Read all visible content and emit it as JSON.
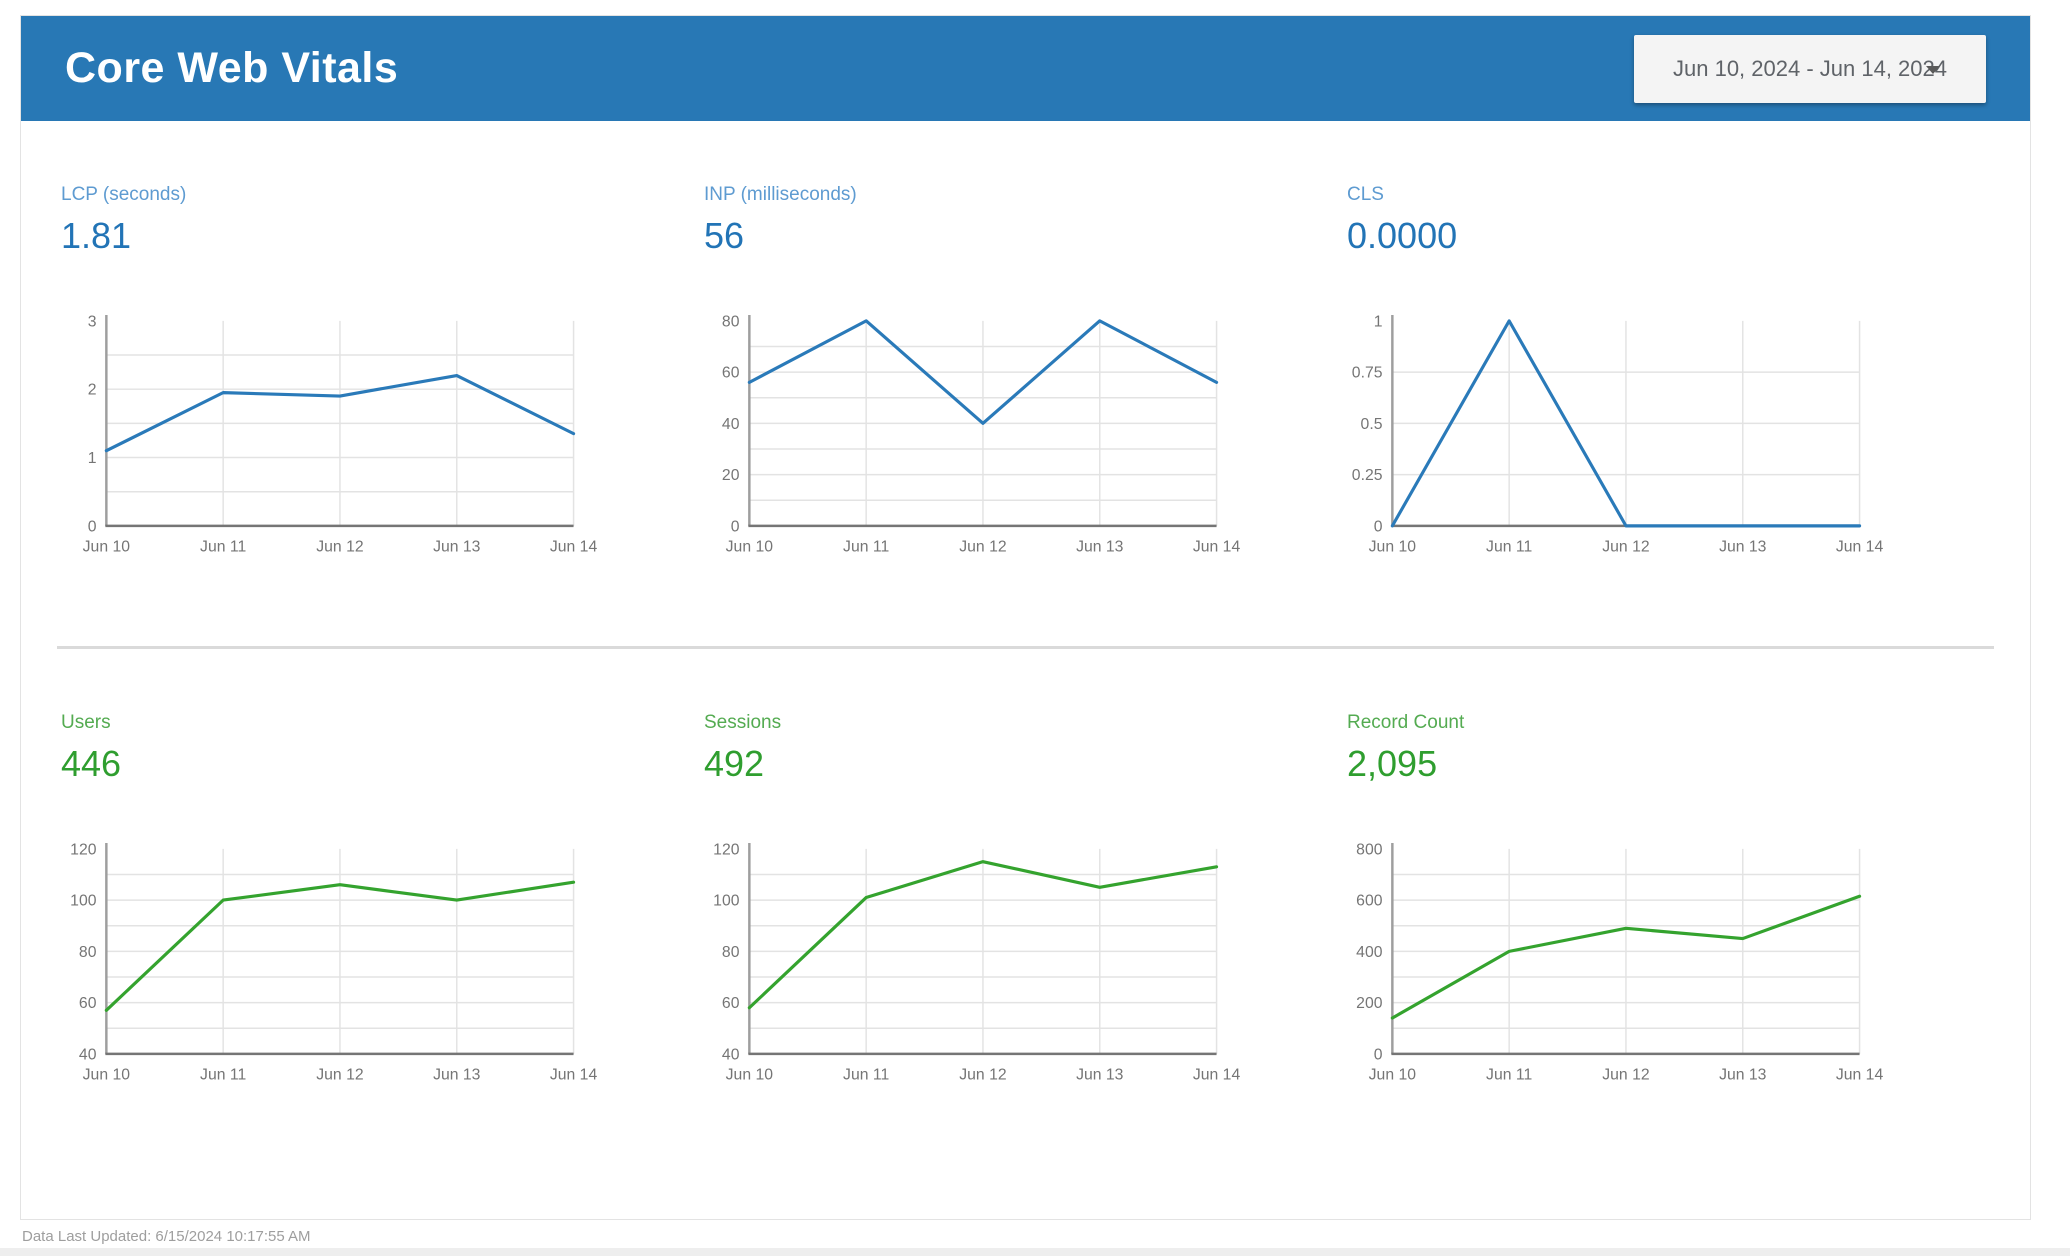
{
  "header": {
    "title": "Core Web Vitals",
    "date_range": "Jun 10, 2024 - Jun 14, 2024"
  },
  "footer": {
    "last_updated": "Data Last Updated: 6/15/2024 10:17:55 AM"
  },
  "colors": {
    "header_blue": "#2878b5",
    "grid": "#e3e3e3",
    "axis": "#9e9e9e",
    "baseline": "#757575",
    "tick_text": "#757575",
    "date_box_bg": "#f4f4f4",
    "date_box_text": "#5f6368"
  },
  "chart_data": [
    {
      "type": "line",
      "title": "LCP (seconds)",
      "scorecard_value": "1.81",
      "x": [
        "Jun 10",
        "Jun 11",
        "Jun 12",
        "Jun 13",
        "Jun 14"
      ],
      "values": [
        1.1,
        1.95,
        1.9,
        2.2,
        1.35
      ],
      "ylim": [
        0,
        3
      ],
      "ytick_values": [
        0,
        1,
        2,
        3
      ],
      "ytick_labels": [
        "0",
        "1",
        "2",
        "3"
      ],
      "grid_step": 0.5,
      "legend": "none",
      "grid": "on",
      "line_color": "#2a7ab9",
      "label_color": "#5e9bd1",
      "value_color": "#2274b6"
    },
    {
      "type": "line",
      "title": "INP (milliseconds)",
      "scorecard_value": "56",
      "x": [
        "Jun 10",
        "Jun 11",
        "Jun 12",
        "Jun 13",
        "Jun 14"
      ],
      "values": [
        56,
        80,
        40,
        80,
        56
      ],
      "ylim": [
        0,
        80
      ],
      "ytick_values": [
        0,
        20,
        40,
        60,
        80
      ],
      "ytick_labels": [
        "0",
        "20",
        "40",
        "60",
        "80"
      ],
      "grid_step": 10,
      "legend": "none",
      "grid": "on",
      "line_color": "#2a7ab9",
      "label_color": "#5e9bd1",
      "value_color": "#2274b6"
    },
    {
      "type": "line",
      "title": "CLS",
      "scorecard_value": "0.0000",
      "x": [
        "Jun 10",
        "Jun 11",
        "Jun 12",
        "Jun 13",
        "Jun 14"
      ],
      "values": [
        0,
        1,
        0,
        0,
        0
      ],
      "ylim": [
        0,
        1
      ],
      "ytick_values": [
        0,
        0.25,
        0.5,
        0.75,
        1
      ],
      "ytick_labels": [
        "0",
        "0.25",
        "0.5",
        "0.75",
        "1"
      ],
      "grid_step": 0.25,
      "legend": "none",
      "grid": "on",
      "line_color": "#2a7ab9",
      "label_color": "#5e9bd1",
      "value_color": "#2274b6"
    },
    {
      "type": "line",
      "title": "Users",
      "scorecard_value": "446",
      "x": [
        "Jun 10",
        "Jun 11",
        "Jun 12",
        "Jun 13",
        "Jun 14"
      ],
      "values": [
        57,
        100,
        106,
        100,
        107
      ],
      "ylim": [
        40,
        120
      ],
      "ytick_values": [
        40,
        60,
        80,
        100,
        120
      ],
      "ytick_labels": [
        "40",
        "60",
        "80",
        "100",
        "120"
      ],
      "grid_step": 10,
      "legend": "none",
      "grid": "on",
      "line_color": "#34a32e",
      "label_color": "#54ab51",
      "value_color": "#2f9e2f"
    },
    {
      "type": "line",
      "title": "Sessions",
      "scorecard_value": "492",
      "x": [
        "Jun 10",
        "Jun 11",
        "Jun 12",
        "Jun 13",
        "Jun 14"
      ],
      "values": [
        58,
        101,
        115,
        105,
        113
      ],
      "ylim": [
        40,
        120
      ],
      "ytick_values": [
        40,
        60,
        80,
        100,
        120
      ],
      "ytick_labels": [
        "40",
        "60",
        "80",
        "100",
        "120"
      ],
      "grid_step": 10,
      "legend": "none",
      "grid": "on",
      "line_color": "#34a32e",
      "label_color": "#54ab51",
      "value_color": "#2f9e2f"
    },
    {
      "type": "line",
      "title": "Record Count",
      "scorecard_value": "2,095",
      "x": [
        "Jun 10",
        "Jun 11",
        "Jun 12",
        "Jun 13",
        "Jun 14"
      ],
      "values": [
        140,
        400,
        490,
        450,
        615
      ],
      "ylim": [
        0,
        800
      ],
      "ytick_values": [
        0,
        200,
        400,
        600,
        800
      ],
      "ytick_labels": [
        "0",
        "200",
        "400",
        "600",
        "800"
      ],
      "grid_step": 100,
      "legend": "none",
      "grid": "on",
      "line_color": "#34a32e",
      "label_color": "#54ab51",
      "value_color": "#2f9e2f"
    }
  ]
}
